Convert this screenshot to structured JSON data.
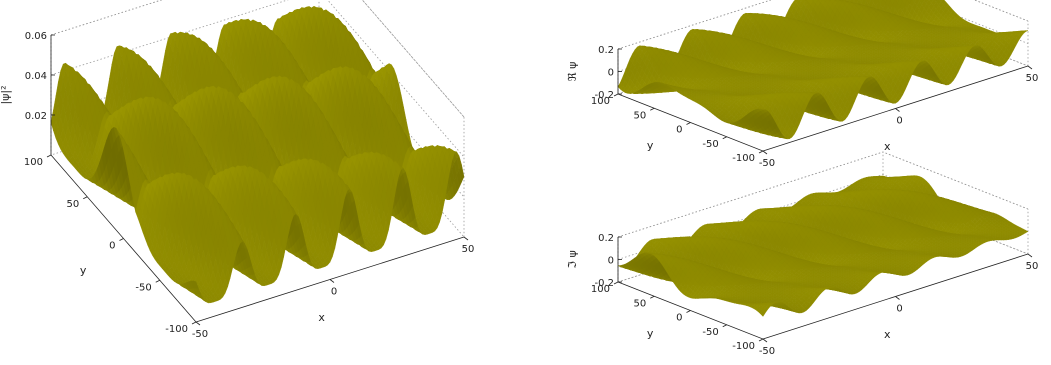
{
  "chart_data": [
    {
      "id": "left",
      "type": "surface",
      "zlabel": "|ψ|²",
      "xlabel": "x",
      "ylabel": "y",
      "xlim": [
        -50,
        50
      ],
      "ylim": [
        -100,
        100
      ],
      "zlim": [
        0,
        0.06
      ],
      "xticks": [
        {
          "v": -50,
          "t": "-50"
        },
        {
          "v": 0,
          "t": "0"
        },
        {
          "v": 50,
          "t": "50"
        }
      ],
      "yticks": [
        {
          "v": -100,
          "t": "-100"
        },
        {
          "v": -50,
          "t": "-50"
        },
        {
          "v": 0,
          "t": "0"
        },
        {
          "v": 50,
          "t": "50"
        },
        {
          "v": 100,
          "t": "100"
        }
      ],
      "zticks": [
        {
          "v": 0.02,
          "t": "0.02"
        },
        {
          "v": 0.04,
          "t": "0.04"
        },
        {
          "v": 0.06,
          "t": "0.06"
        }
      ],
      "color": "#b9b400",
      "grid": true
    },
    {
      "id": "top-right",
      "type": "surface",
      "zlabel": "ℜ ψ",
      "xlabel": "x",
      "ylabel": "y",
      "xlim": [
        -50,
        50
      ],
      "ylim": [
        -100,
        100
      ],
      "zlim": [
        -0.2,
        0.2
      ],
      "xticks": [
        {
          "v": -50,
          "t": "-50"
        },
        {
          "v": 0,
          "t": "0"
        },
        {
          "v": 50,
          "t": "50"
        }
      ],
      "yticks": [
        {
          "v": -100,
          "t": "-100"
        },
        {
          "v": -50,
          "t": "-50"
        },
        {
          "v": 0,
          "t": "0"
        },
        {
          "v": 50,
          "t": "50"
        },
        {
          "v": 100,
          "t": "100"
        }
      ],
      "zticks": [
        {
          "v": -0.2,
          "t": "-0.2"
        },
        {
          "v": 0,
          "t": "0"
        },
        {
          "v": 0.2,
          "t": "0.2"
        }
      ],
      "color": "#b9b400",
      "grid": true
    },
    {
      "id": "bottom-right",
      "type": "surface",
      "zlabel": "ℑ ψ",
      "xlabel": "x",
      "ylabel": "y",
      "xlim": [
        -50,
        50
      ],
      "ylim": [
        -100,
        100
      ],
      "zlim": [
        -0.2,
        0.2
      ],
      "xticks": [
        {
          "v": -50,
          "t": "-50"
        },
        {
          "v": 0,
          "t": "0"
        },
        {
          "v": 50,
          "t": "50"
        }
      ],
      "yticks": [
        {
          "v": -100,
          "t": "-100"
        },
        {
          "v": -50,
          "t": "-50"
        },
        {
          "v": 0,
          "t": "0"
        },
        {
          "v": 50,
          "t": "50"
        },
        {
          "v": 100,
          "t": "100"
        }
      ],
      "zticks": [
        {
          "v": -0.2,
          "t": "-0.2"
        },
        {
          "v": 0,
          "t": "0"
        },
        {
          "v": 0.2,
          "t": "0.2"
        }
      ],
      "color": "#b9b400",
      "grid": true
    }
  ]
}
